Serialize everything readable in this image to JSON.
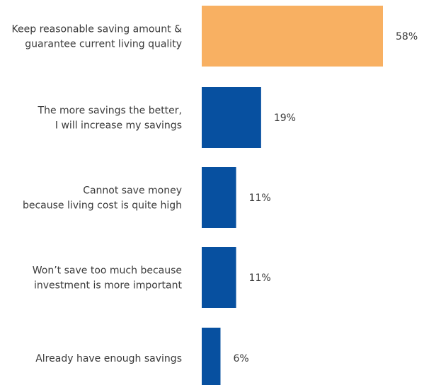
{
  "chart_data": {
    "type": "bar",
    "orientation": "horizontal",
    "categories": [
      [
        "Keep reasonable saving amount &",
        "guarantee current living quality"
      ],
      [
        "The more savings the better,",
        "I will increase my savings"
      ],
      [
        "Cannot save money",
        "because living  cost is quite high"
      ],
      [
        "Won’t save too much because",
        "investment is more important"
      ],
      [
        "Already have enough savings"
      ]
    ],
    "values": [
      58,
      19,
      11,
      11,
      6
    ],
    "value_labels": [
      "58%",
      "19%",
      "11%",
      "11%",
      "6%"
    ],
    "unit": "%",
    "xlim": [
      0,
      58
    ],
    "bar_colors": [
      "#F8B062",
      "#0750A0",
      "#0750A0",
      "#0750A0",
      "#0750A0"
    ],
    "grid": false,
    "legend": "none"
  }
}
